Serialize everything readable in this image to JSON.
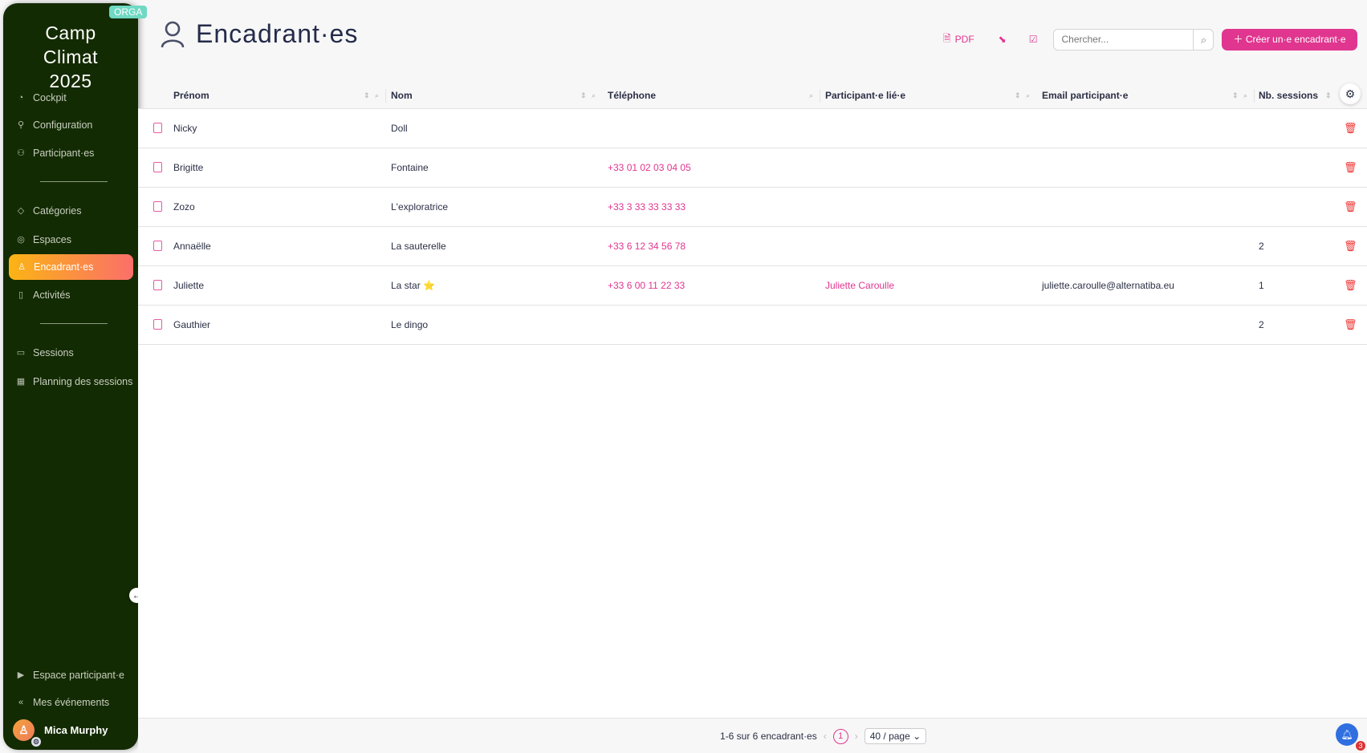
{
  "sidebar": {
    "brand": "Camp Climat 2025",
    "badge": "ORGA",
    "items": [
      {
        "label": "Cockpit",
        "icon": "gauge-icon"
      },
      {
        "label": "Configuration",
        "icon": "wrench-icon"
      },
      {
        "label": "Participant·es",
        "icon": "users-icon"
      },
      {
        "label": "Catégories",
        "icon": "tag-icon"
      },
      {
        "label": "Espaces",
        "icon": "location-icon"
      },
      {
        "label": "Encadrant·es",
        "icon": "user-icon",
        "active": true
      },
      {
        "label": "Activités",
        "icon": "book-icon"
      },
      {
        "label": "Sessions",
        "icon": "sessions-icon"
      },
      {
        "label": "Planning des sessions",
        "icon": "calendar-icon"
      },
      {
        "label": "Espace participant·e",
        "icon": "play-square-icon"
      },
      {
        "label": "Mes événements",
        "icon": "double-chevron-left-icon"
      }
    ],
    "user": "Mica Murphy"
  },
  "header": {
    "title": "Encadrant·es",
    "pdf": "PDF",
    "search_placeholder": "Chercher...",
    "create": "Créer un·e encadrant·e"
  },
  "table": {
    "columns": [
      "Prénom",
      "Nom",
      "Téléphone",
      "Participant·e lié·e",
      "Email participant·e",
      "Nb. sessions"
    ],
    "rows": [
      [
        "Nicky",
        "Doll",
        "",
        "",
        "",
        ""
      ],
      [
        "Brigitte",
        "Fontaine",
        "+33 01 02 03 04 05",
        "",
        "",
        ""
      ],
      [
        "Zozo",
        "L'exploratrice",
        "+33 3 33 33 33 33",
        "",
        "",
        ""
      ],
      [
        "Annaëlle",
        "La sauterelle",
        "+33 6 12 34 56 78",
        "",
        "",
        "2"
      ],
      [
        "Juliette",
        "La star ⭐",
        "+33 6 00 11 22 33",
        "Juliette Caroulle",
        "juliette.caroulle@alternatiba.eu",
        "1"
      ],
      [
        "Gauthier",
        "Le dingo",
        "",
        "",
        "",
        "2"
      ]
    ]
  },
  "footer": {
    "summary": "1-6 sur 6 encadrant·es",
    "page": "1",
    "page_size": "40 / page",
    "notifications": "3"
  },
  "colors": {
    "accent": "#e0368f",
    "sidebar": "#132b02"
  }
}
